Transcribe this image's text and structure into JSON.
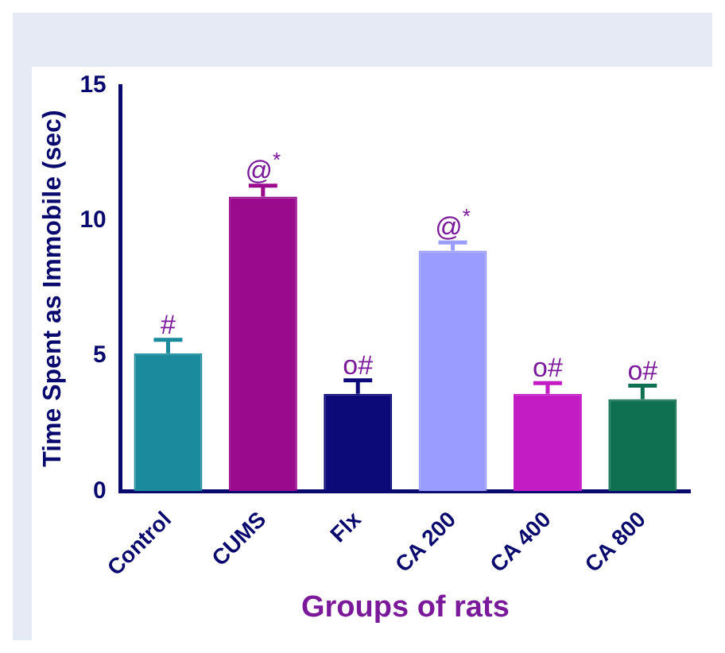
{
  "chart_data": {
    "type": "bar",
    "xlabel": "Groups of rats",
    "ylabel": "Time Spent as Immobile (sec)",
    "categories": [
      "Control",
      "CUMS",
      "Flx",
      "CA 200",
      "CA 400",
      "CA 800"
    ],
    "values": [
      5.1,
      10.9,
      3.6,
      8.9,
      3.6,
      3.4
    ],
    "colors": [
      "#1a8a9c",
      "#9a0a8c",
      "#0c0a78",
      "#9a9cff",
      "#c41cc4",
      "#0e7050"
    ],
    "errors": [
      [
        5.1,
        5.6
      ],
      [
        10.9,
        11.3
      ],
      [
        3.6,
        4.1
      ],
      [
        8.9,
        9.2
      ],
      [
        3.6,
        4.0
      ],
      [
        3.4,
        3.9
      ]
    ],
    "ylim": [
      0,
      15
    ],
    "yticks": [
      0,
      5,
      10,
      15
    ],
    "grid": false,
    "legend": false,
    "annotations": [
      {
        "text": "#",
        "x": "Control",
        "y": 5.6
      },
      {
        "text": "@$^{*}$",
        "x": "CUMS",
        "y": 11.3
      },
      {
        "text": "o#",
        "x": "Flx",
        "y": 4.1
      },
      {
        "text": "@$^{*}$",
        "x": "CA 200",
        "y": 9.2
      },
      {
        "text": "o#",
        "x": "CA 400",
        "y": 4.0
      },
      {
        "text": "o#",
        "x": "CA 800",
        "y": 3.9
      }
    ]
  }
}
